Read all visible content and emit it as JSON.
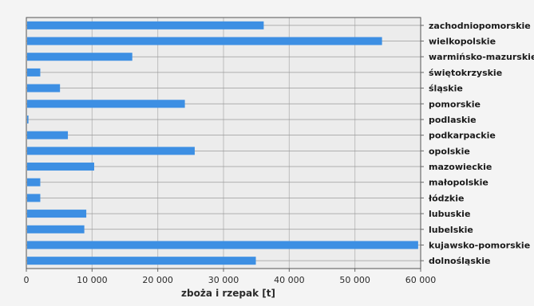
{
  "chart_data": {
    "type": "bar",
    "orientation": "horizontal",
    "xlabel": "zboża i rzepak [t]",
    "ylabel": "",
    "xlim": [
      0,
      60000
    ],
    "xticks": [
      0,
      10000,
      20000,
      30000,
      40000,
      50000,
      60000
    ],
    "xtick_labels": [
      "0",
      "10 000",
      "20 000",
      "30 000",
      "40 000",
      "50 000",
      "60 000"
    ],
    "grid": true,
    "legend": "none",
    "category_axis_side": "right",
    "bar_color": "#3d8fe3",
    "categories": [
      "zachodniopomorskie",
      "wielkopolskie",
      "warmińsko-mazurskie",
      "świętokrzyskie",
      "śląskie",
      "pomorskie",
      "podlaskie",
      "podkarpackie",
      "opolskie",
      "mazowieckie",
      "małopolskie",
      "łódzkie",
      "lubuskie",
      "lubelskie",
      "kujawsko-pomorskie",
      "dolnośląskie"
    ],
    "values": [
      36000,
      54000,
      16000,
      2000,
      5000,
      24000,
      200,
      6200,
      25500,
      10200,
      2000,
      2000,
      9000,
      8700,
      59500,
      34800
    ]
  }
}
